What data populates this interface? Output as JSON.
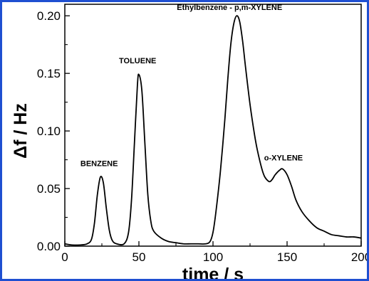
{
  "chart_data": {
    "type": "line",
    "xlabel": "time / s",
    "ylabel": "Δf / Hz",
    "xlim": [
      0,
      200
    ],
    "ylim": [
      0,
      0.21
    ],
    "xticks": [
      0,
      50,
      100,
      150,
      200
    ],
    "xtick_labels": [
      "0",
      "50",
      "100",
      "150",
      "200"
    ],
    "yticks": [
      0.0,
      0.05,
      0.1,
      0.15,
      0.2
    ],
    "ytick_labels": [
      "0.00",
      "0.05",
      "0.10",
      "0.15",
      "0.20"
    ],
    "grid": false,
    "annotations": [
      {
        "text": "BENZENE",
        "x": 24,
        "y": 0.062
      },
      {
        "text": "TOLUENE",
        "x": 50,
        "y": 0.15
      },
      {
        "text": "Ethylbenzene - p,m-XYLENE",
        "x": 116,
        "y": 0.2
      },
      {
        "text": "o-XYLENE",
        "x": 147,
        "y": 0.067
      }
    ],
    "series": [
      {
        "color": "#000000",
        "x": [
          0,
          5,
          10,
          15,
          18,
          20,
          22,
          24,
          26,
          28,
          30,
          32,
          35,
          40,
          43,
          45,
          47,
          49,
          50,
          52,
          54,
          56,
          58,
          60,
          65,
          70,
          75,
          80,
          85,
          90,
          95,
          98,
          100,
          102,
          105,
          108,
          110,
          112,
          114,
          116,
          118,
          120,
          122,
          125,
          128,
          130,
          133,
          135,
          138,
          140,
          142,
          145,
          147,
          150,
          153,
          156,
          160,
          165,
          170,
          175,
          180,
          185,
          190,
          195,
          200
        ],
        "y": [
          0.002,
          0.001,
          0.001,
          0.002,
          0.006,
          0.02,
          0.045,
          0.06,
          0.055,
          0.033,
          0.014,
          0.005,
          0.002,
          0.002,
          0.012,
          0.04,
          0.09,
          0.14,
          0.149,
          0.135,
          0.09,
          0.045,
          0.022,
          0.013,
          0.007,
          0.004,
          0.003,
          0.002,
          0.002,
          0.002,
          0.002,
          0.004,
          0.012,
          0.03,
          0.065,
          0.11,
          0.145,
          0.175,
          0.193,
          0.2,
          0.195,
          0.178,
          0.155,
          0.123,
          0.097,
          0.083,
          0.067,
          0.06,
          0.056,
          0.058,
          0.062,
          0.066,
          0.067,
          0.062,
          0.052,
          0.04,
          0.03,
          0.022,
          0.016,
          0.013,
          0.01,
          0.009,
          0.008,
          0.008,
          0.007
        ]
      }
    ]
  }
}
